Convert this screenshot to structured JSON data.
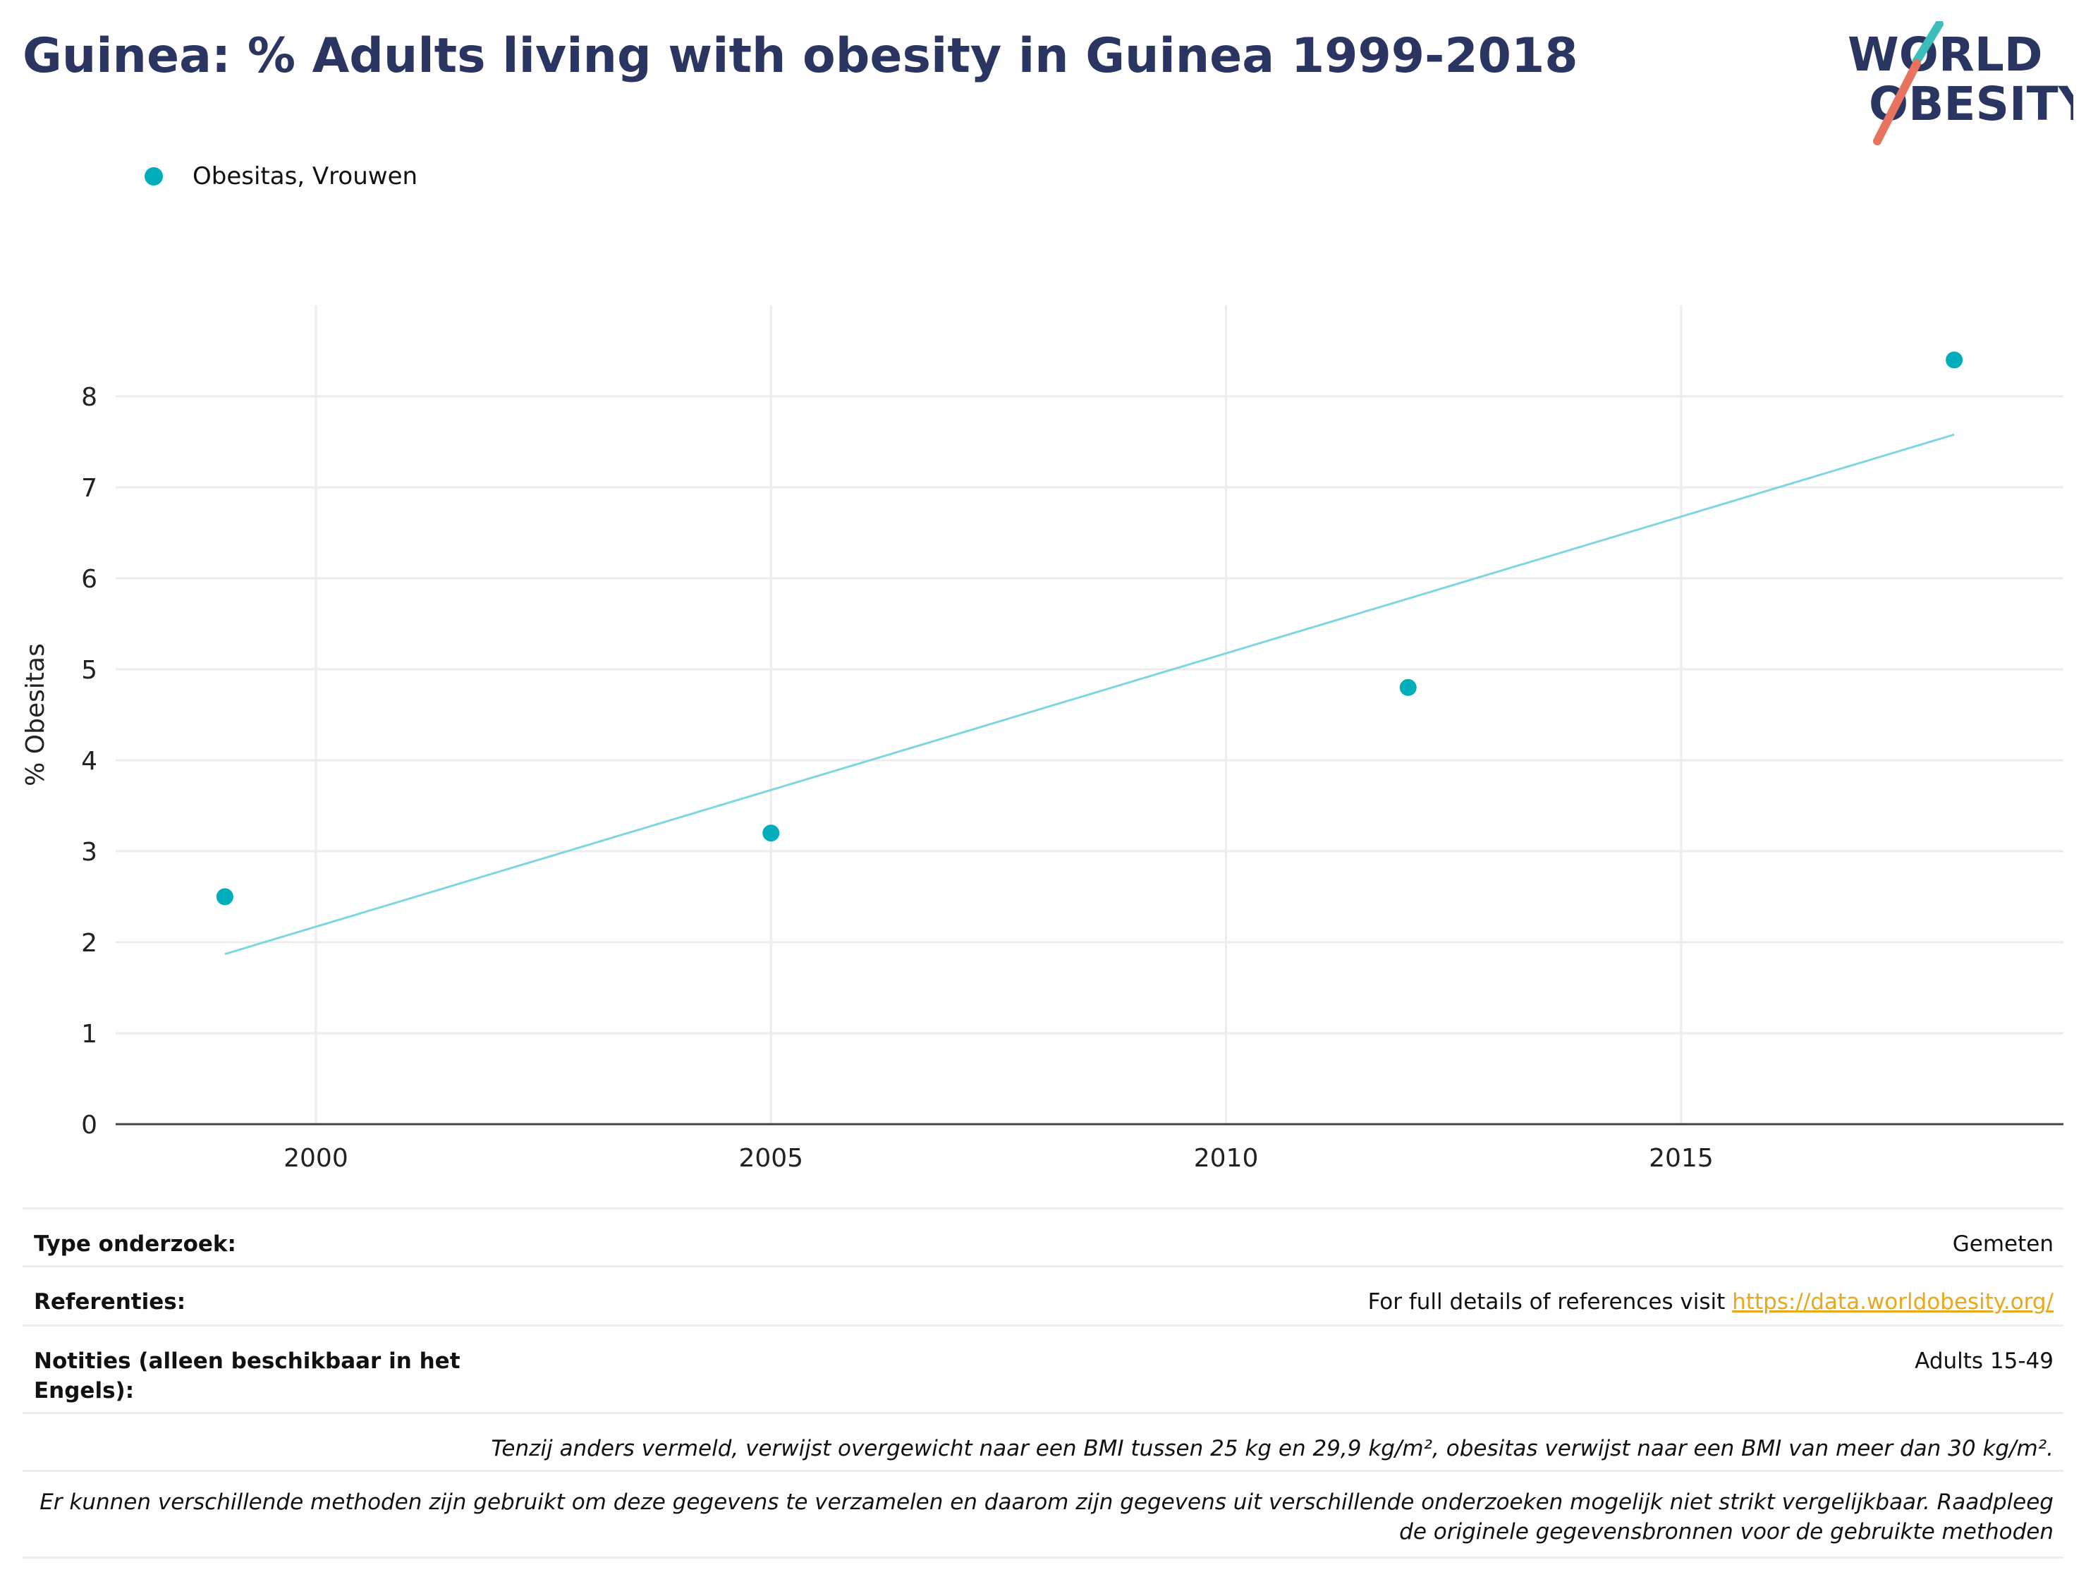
{
  "title": "Guinea: % Adults living with obesity in Guinea 1999-2018",
  "logo": {
    "line1": "WORLD",
    "line2": "OBESITY"
  },
  "colors": {
    "title": "#2a3561",
    "series": "#00adbb",
    "trend": "#7fd6dd",
    "link": "#e7a81d",
    "logo_teal": "#3bbdb9",
    "logo_coral": "#e8735f"
  },
  "legend": {
    "label": "Obesitas, Vrouwen"
  },
  "chart_data": {
    "type": "scatter",
    "ylabel": "% Obesitas",
    "xlabel": "",
    "xlim": [
      1997.8,
      2019.2
    ],
    "ylim": [
      0,
      9
    ],
    "x_ticks": [
      2000,
      2005,
      2010,
      2015
    ],
    "y_ticks": [
      0,
      1,
      2,
      3,
      4,
      5,
      6,
      7,
      8
    ],
    "grid": true,
    "legend_position": "top-left",
    "series": [
      {
        "name": "Obesitas, Vrouwen",
        "points": [
          {
            "x": 1999,
            "y": 2.5
          },
          {
            "x": 2005,
            "y": 3.2
          },
          {
            "x": 2012,
            "y": 4.8
          },
          {
            "x": 2018,
            "y": 8.4
          }
        ]
      }
    ],
    "trendline": {
      "from": {
        "x": 1999,
        "y": 1.87
      },
      "to": {
        "x": 2018,
        "y": 7.58
      }
    }
  },
  "info": {
    "type_label": "Type onderzoek:",
    "type_value": "Gemeten",
    "ref_label": "Referenties:",
    "ref_text": "For full details of references visit ",
    "ref_link": "https://data.worldobesity.org/",
    "notes_label": "Notities (alleen beschikbaar in het Engels):",
    "notes_value": "Adults 15-49",
    "definition": "Tenzij anders vermeld, verwijst overgewicht naar een BMI tussen 25 kg en 29,9 kg/m², obesitas verwijst naar een BMI van meer dan 30 kg/m².",
    "methods": "Er kunnen verschillende methoden zijn gebruikt om deze gegevens te verzamelen en daarom zijn gegevens uit verschillende onderzoeken mogelijk niet strikt vergelijkbaar. Raadpleeg de originele gegevensbronnen voor de gebruikte methoden"
  }
}
